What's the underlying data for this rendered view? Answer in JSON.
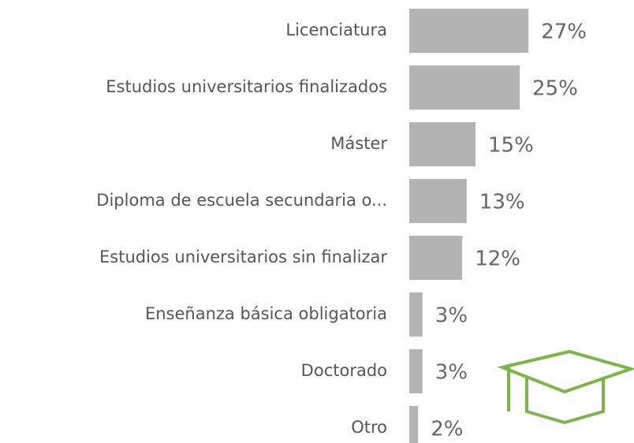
{
  "chart_data": {
    "type": "bar",
    "orientation": "horizontal",
    "categories": [
      "Licenciatura",
      "Estudios universitarios finalizados",
      "Máster",
      "Diploma de escuela secundaria o...",
      "Estudios universitarios sin finalizar",
      "Enseñanza básica obligatoria",
      "Doctorado",
      "Otro"
    ],
    "values": [
      27,
      25,
      15,
      13,
      12,
      3,
      3,
      2
    ],
    "value_labels": [
      "27%",
      "25%",
      "15%",
      "13%",
      "12%",
      "3%",
      "3%",
      "2%"
    ],
    "color": "#b3b3b3"
  }
}
